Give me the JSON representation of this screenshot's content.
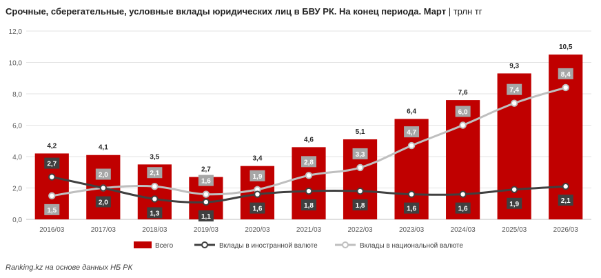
{
  "title_main": "Срочные, сберегательные, условные вклады юридических лиц в БВУ РК. На конец периода. Март",
  "title_unit": "| трлн тг",
  "source": "Ranking.kz на основе данных НБ РК",
  "colors": {
    "bar": "#c00000",
    "foreign": "#404040",
    "national": "#bfbfbf",
    "label_bg_foreign": "#404040",
    "label_bg_national": "#a6a6a6"
  },
  "chart_data": {
    "type": "bar",
    "categories": [
      "2016/03",
      "2017/03",
      "2018/03",
      "2019/03",
      "2020/03",
      "2021/03",
      "2022/03",
      "2023/03",
      "2024/03",
      "2025/03",
      "2026/03"
    ],
    "ylim": [
      0,
      12
    ],
    "yticks": [
      "0,0",
      "2,0",
      "4,0",
      "6,0",
      "8,0",
      "10,0",
      "12,0"
    ],
    "legend_position": "bottom",
    "series": [
      {
        "name": "Всего",
        "kind": "bar",
        "values": [
          4.2,
          4.1,
          3.5,
          2.7,
          3.4,
          4.6,
          5.1,
          6.4,
          7.6,
          9.3,
          10.5
        ],
        "labels": [
          "4,2",
          "4,1",
          "3,5",
          "2,7",
          "3,4",
          "4,6",
          "5,1",
          "6,4",
          "7,6",
          "9,3",
          "10,5"
        ]
      },
      {
        "name": "Вклады в иностранной валюте",
        "kind": "line",
        "values": [
          2.7,
          2.0,
          1.3,
          1.1,
          1.6,
          1.8,
          1.8,
          1.6,
          1.6,
          1.9,
          2.1
        ],
        "labels": [
          "2,7",
          "2,0",
          "1,3",
          "1,1",
          "1,6",
          "1,8",
          "1,8",
          "1,6",
          "1,6",
          "1,9",
          "2,1"
        ]
      },
      {
        "name": "Вклады в национальной валюте",
        "kind": "line",
        "values": [
          1.5,
          2.0,
          2.1,
          1.6,
          1.9,
          2.8,
          3.3,
          4.7,
          6.0,
          7.4,
          8.4
        ],
        "labels": [
          "1,5",
          "2,0",
          "2,1",
          "1,6",
          "1,9",
          "2,8",
          "3,3",
          "4,7",
          "6,0",
          "7,4",
          "8,4"
        ]
      }
    ]
  }
}
